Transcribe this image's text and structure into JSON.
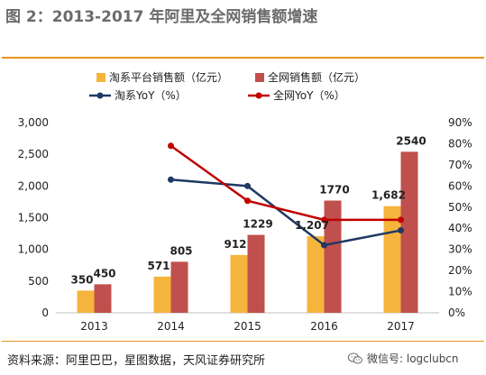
{
  "title": "图 2：2013-2017 年阿里及全网销售额增速",
  "source_note": "资料来源：阿里巴巴，星图数据，天风证券研究所",
  "watermark": {
    "icon": "wechat-icon",
    "text": "微信号: logclubcn"
  },
  "chart_data": {
    "type": "bar",
    "categories": [
      "2013",
      "2014",
      "2015",
      "2016",
      "2017"
    ],
    "series": [
      {
        "name": "淘系平台销售额（亿元）",
        "kind": "bar",
        "axis": "left",
        "color": "#f5b43c",
        "values": [
          350,
          571,
          912,
          1207,
          1682
        ],
        "labels": [
          "350",
          "571",
          "912",
          "1,207",
          "1,682"
        ]
      },
      {
        "name": "全网销售额（亿元）",
        "kind": "bar",
        "axis": "left",
        "color": "#c0504d",
        "values": [
          450,
          805,
          1229,
          1770,
          2540
        ],
        "labels": [
          "450",
          "805",
          "1229",
          "1770",
          "2540"
        ]
      },
      {
        "name": "淘系YoY（%）",
        "kind": "line",
        "axis": "right",
        "color": "#1f3864",
        "values": [
          null,
          63,
          60,
          32,
          39
        ]
      },
      {
        "name": "全网YoY（%）",
        "kind": "line",
        "axis": "right",
        "color": "#c00000",
        "values": [
          null,
          79,
          53,
          44,
          44
        ]
      }
    ],
    "y_left": {
      "min": 0,
      "max": 3000,
      "ticks": [
        "0",
        "500",
        "1,000",
        "1,500",
        "2,000",
        "2,500",
        "3,000"
      ]
    },
    "y_right": {
      "min": 0,
      "max": 90,
      "ticks": [
        "0%",
        "10%",
        "20%",
        "30%",
        "40%",
        "50%",
        "60%",
        "70%",
        "80%",
        "90%"
      ]
    },
    "grid": false,
    "legend_position": "top"
  }
}
